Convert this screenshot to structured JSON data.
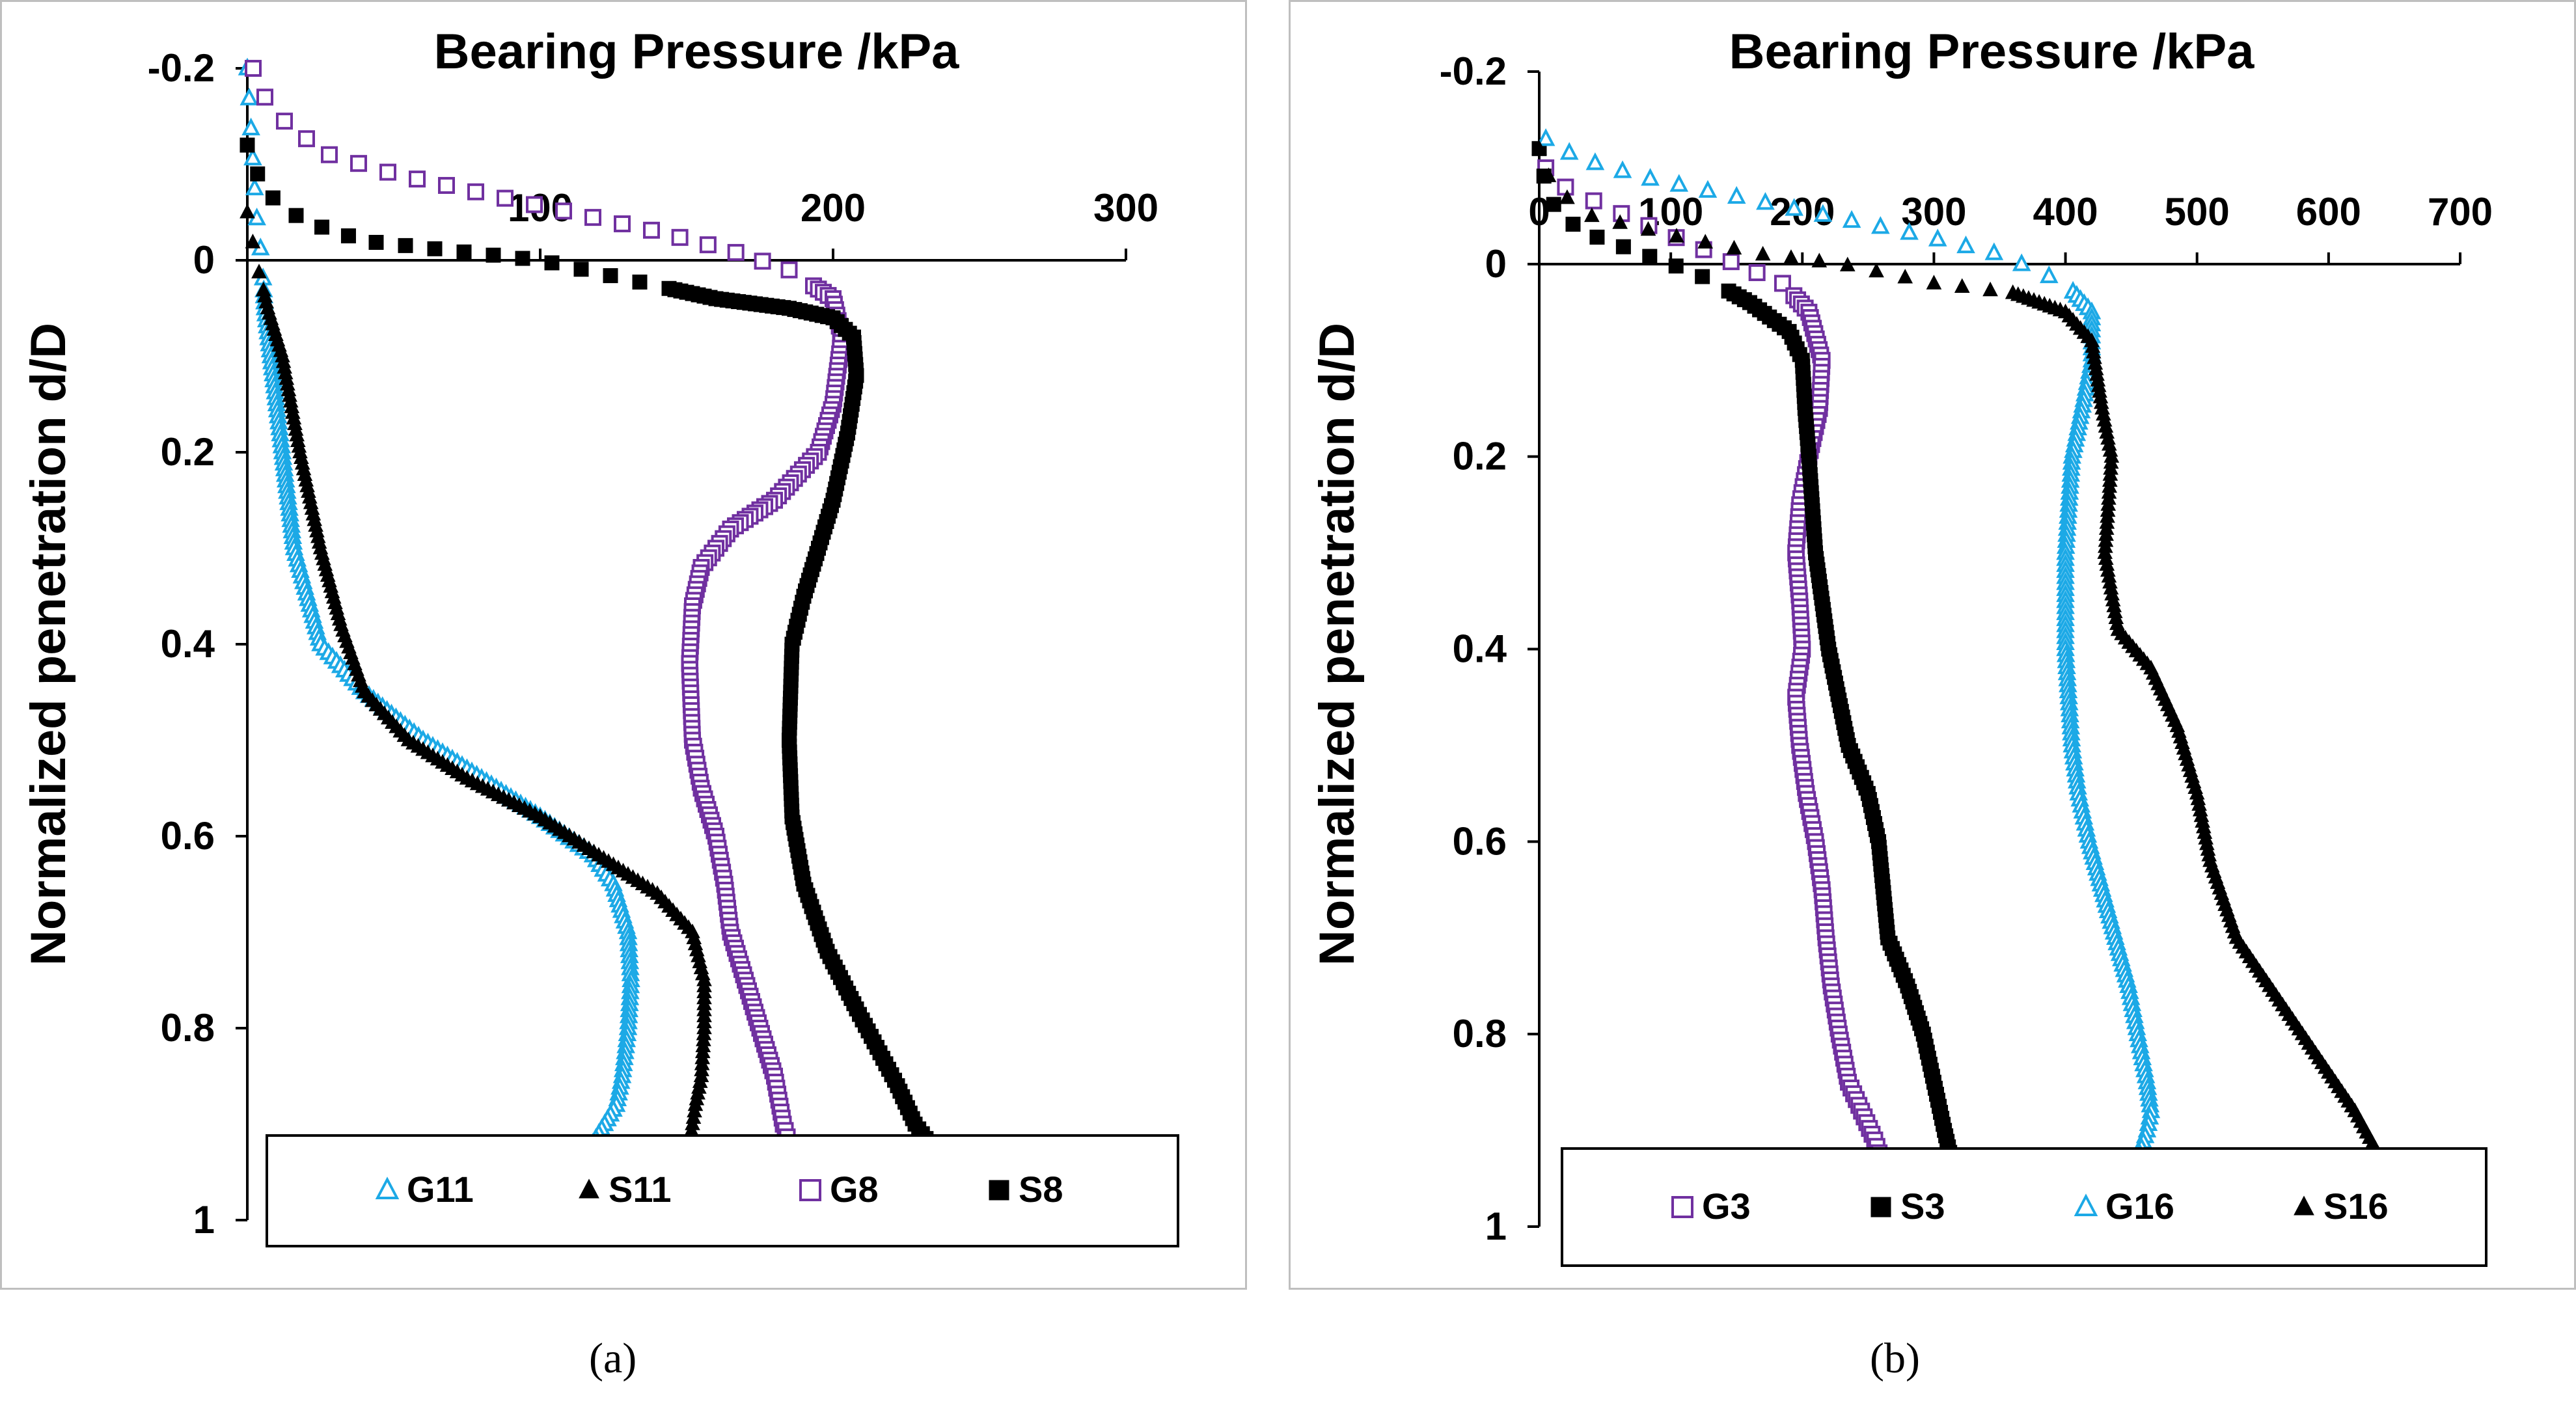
{
  "captions": [
    "(a)",
    "(b)"
  ],
  "chart_data": [
    {
      "type": "scatter",
      "panel": "a",
      "title": "Bearing Pressure /kPa",
      "xlabel": "Bearing Pressure /kPa",
      "ylabel": "Normalized penetration d/D",
      "xlim": [
        0,
        300
      ],
      "ylim": [
        -0.2,
        1
      ],
      "x_ticks": [
        "100",
        "200",
        "300"
      ],
      "y_ticks": [
        "-0.2",
        "0",
        "0.2",
        "0.4",
        "0.6",
        "0.8",
        "1"
      ],
      "legend_position": "bottom",
      "series": [
        {
          "name": "G11",
          "marker": "open-triangle",
          "color": "#1CA9E6",
          "x": [
            0,
            2,
            3,
            5,
            6,
            8,
            10,
            12,
            16,
            25,
            40,
            60,
            85,
            100,
            118,
            125,
            130,
            131,
            130,
            128,
            126,
            122,
            118
          ],
          "y": [
            -0.2,
            -0.1,
            -0.05,
            0.0,
            0.05,
            0.1,
            0.15,
            0.2,
            0.3,
            0.4,
            0.45,
            0.5,
            0.55,
            0.58,
            0.62,
            0.65,
            0.7,
            0.75,
            0.8,
            0.85,
            0.88,
            0.9,
            0.92
          ]
        },
        {
          "name": "S11",
          "marker": "filled-triangle",
          "color": "#000000",
          "x": [
            0,
            3,
            7,
            12,
            18,
            25,
            32,
            40,
            55,
            75,
            100,
            120,
            140,
            152,
            156,
            156,
            155,
            153,
            152,
            151
          ],
          "y": [
            -0.05,
            0.0,
            0.05,
            0.1,
            0.2,
            0.3,
            0.38,
            0.45,
            0.5,
            0.54,
            0.58,
            0.62,
            0.66,
            0.7,
            0.75,
            0.8,
            0.85,
            0.88,
            0.9,
            0.92
          ]
        },
        {
          "name": "G8",
          "marker": "open-square",
          "color": "#7030A0",
          "x": [
            2,
            6,
            14,
            28,
            50,
            80,
            110,
            140,
            165,
            185,
            200,
            203,
            200,
            195,
            180,
            165,
            155,
            152,
            151,
            152,
            155,
            160,
            163,
            165,
            170,
            175,
            180,
            183,
            185
          ],
          "y": [
            -0.2,
            -0.17,
            -0.14,
            -0.11,
            -0.09,
            -0.07,
            -0.05,
            -0.03,
            -0.01,
            0.01,
            0.04,
            0.08,
            0.15,
            0.2,
            0.25,
            0.28,
            0.32,
            0.36,
            0.42,
            0.5,
            0.55,
            0.6,
            0.65,
            0.7,
            0.75,
            0.8,
            0.85,
            0.9,
            0.92
          ]
        },
        {
          "name": "S8",
          "marker": "filled-square",
          "color": "#000000",
          "x": [
            0,
            2,
            5,
            10,
            20,
            40,
            70,
            100,
            130,
            160,
            185,
            200,
            207,
            208,
            205,
            200,
            195,
            190,
            186,
            185,
            186,
            190,
            198,
            208,
            215,
            222,
            228,
            233
          ],
          "y": [
            -0.12,
            -0.1,
            -0.08,
            -0.06,
            -0.04,
            -0.02,
            -0.01,
            0.0,
            0.02,
            0.04,
            0.05,
            0.06,
            0.08,
            0.12,
            0.18,
            0.25,
            0.3,
            0.35,
            0.4,
            0.5,
            0.58,
            0.65,
            0.72,
            0.78,
            0.82,
            0.86,
            0.9,
            0.92
          ]
        }
      ]
    },
    {
      "type": "scatter",
      "panel": "b",
      "title": "Bearing Pressure /kPa",
      "xlabel": "Bearing Pressure /kPa",
      "ylabel": "Normalized penetration d/D",
      "xlim": [
        0,
        700
      ],
      "ylim": [
        -0.2,
        1
      ],
      "x_ticks": [
        "0",
        "100",
        "200",
        "300",
        "400",
        "500",
        "600",
        "700"
      ],
      "y_ticks": [
        "-0.2",
        "0",
        "0.2",
        "0.4",
        "0.6",
        "0.8",
        "1"
      ],
      "legend_position": "bottom",
      "series": [
        {
          "name": "G3",
          "marker": "open-square",
          "color": "#7030A0",
          "x": [
            5,
            20,
            50,
            100,
            150,
            185,
            205,
            215,
            213,
            205,
            198,
            195,
            198,
            200,
            195,
            198,
            203,
            210,
            215,
            218,
            222,
            228,
            235,
            245,
            255,
            260
          ],
          "y": [
            -0.1,
            -0.08,
            -0.06,
            -0.03,
            0.0,
            0.02,
            0.05,
            0.1,
            0.15,
            0.2,
            0.25,
            0.3,
            0.35,
            0.4,
            0.45,
            0.5,
            0.55,
            0.6,
            0.65,
            0.7,
            0.75,
            0.8,
            0.85,
            0.88,
            0.91,
            0.93
          ]
        },
        {
          "name": "S3",
          "marker": "filled-square",
          "color": "#000000",
          "x": [
            0,
            5,
            15,
            40,
            80,
            120,
            160,
            190,
            200,
            202,
            205,
            210,
            220,
            235,
            250,
            258,
            265,
            280,
            292,
            300,
            308,
            315
          ],
          "y": [
            -0.12,
            -0.08,
            -0.05,
            -0.03,
            -0.01,
            0.01,
            0.04,
            0.07,
            0.1,
            0.15,
            0.2,
            0.3,
            0.4,
            0.5,
            0.55,
            0.6,
            0.7,
            0.75,
            0.8,
            0.85,
            0.9,
            0.94
          ]
        },
        {
          "name": "G16",
          "marker": "open-triangle",
          "color": "#1CA9E6",
          "x": [
            5,
            30,
            80,
            150,
            220,
            290,
            350,
            400,
            420,
            420,
            405,
            400,
            400,
            405,
            410,
            418,
            428,
            438,
            448,
            455,
            462,
            465,
            462,
            455
          ],
          "y": [
            -0.13,
            -0.11,
            -0.09,
            -0.07,
            -0.05,
            -0.03,
            -0.01,
            0.02,
            0.05,
            0.1,
            0.2,
            0.3,
            0.4,
            0.5,
            0.55,
            0.6,
            0.65,
            0.7,
            0.75,
            0.8,
            0.85,
            0.88,
            0.9,
            0.93
          ]
        },
        {
          "name": "S16",
          "marker": "filled-triangle",
          "color": "#000000",
          "x": [
            0,
            10,
            40,
            100,
            170,
            230,
            300,
            360,
            400,
            420,
            428,
            435,
            430,
            440,
            465,
            485,
            500,
            510,
            530,
            570,
            600,
            620,
            640
          ],
          "y": [
            -0.12,
            -0.08,
            -0.05,
            -0.03,
            -0.01,
            0.0,
            0.02,
            0.03,
            0.05,
            0.08,
            0.15,
            0.2,
            0.3,
            0.38,
            0.42,
            0.48,
            0.55,
            0.62,
            0.7,
            0.78,
            0.84,
            0.88,
            0.93
          ]
        }
      ]
    }
  ]
}
